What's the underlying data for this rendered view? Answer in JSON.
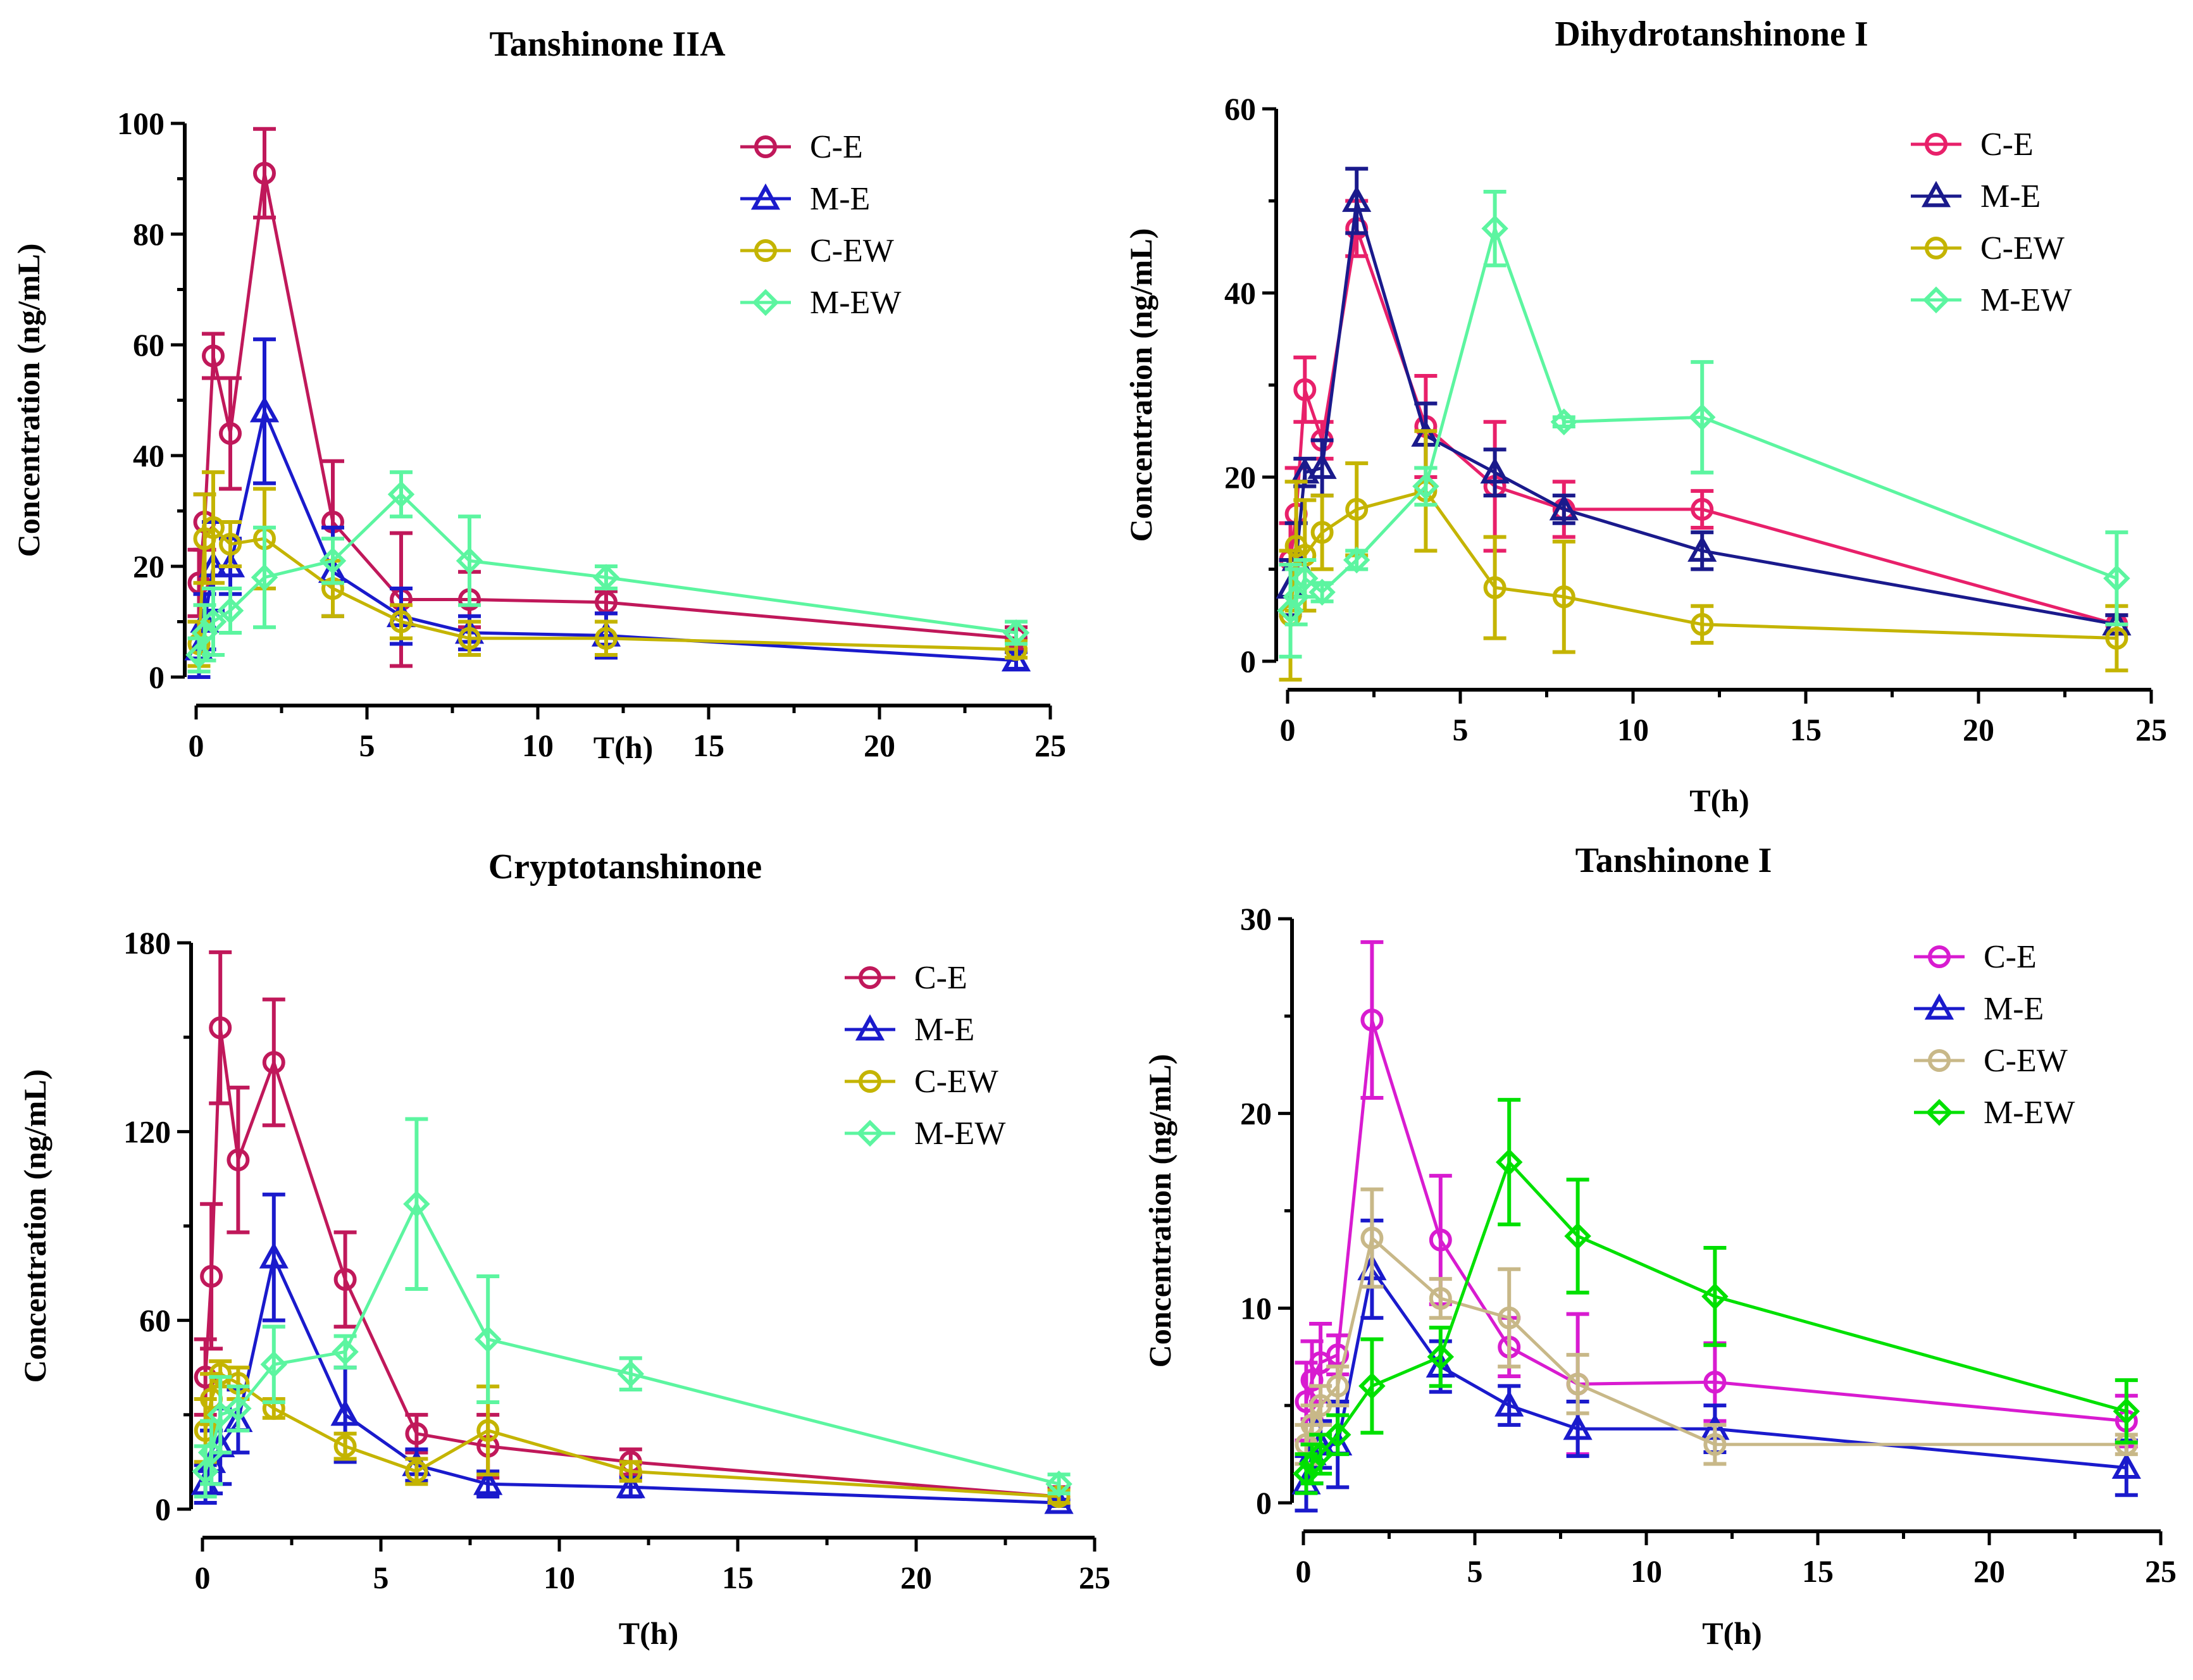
{
  "chart_data": [
    {
      "type": "line",
      "title": "Tanshinone IIA",
      "xlabel": "T(h)",
      "ylabel": "Concentration (ng/mL)",
      "xlim": [
        0,
        25
      ],
      "ylim": [
        0,
        100
      ],
      "xticks": [
        0,
        5,
        10,
        15,
        20,
        25
      ],
      "yticks": [
        0,
        20,
        40,
        60,
        80,
        100
      ],
      "xtick_labels": [
        "0",
        "5",
        "10",
        "15",
        "20",
        "25"
      ],
      "ytick_labels": [
        "0",
        "20",
        "40",
        "60",
        "80",
        "100"
      ],
      "legend_position": "top-right",
      "x": [
        0.083,
        0.25,
        0.5,
        1,
        2,
        4,
        6,
        8,
        12,
        24
      ],
      "series": [
        {
          "name": "C-E",
          "color": "#C0185A",
          "marker": "circle",
          "values": [
            17,
            28,
            58,
            44,
            91,
            28,
            14,
            14,
            13.5,
            7
          ],
          "errors": [
            6,
            5,
            4,
            10,
            8,
            11,
            12,
            5,
            2,
            2
          ]
        },
        {
          "name": "M-E",
          "color": "#1A1ACC",
          "marker": "triangle",
          "values": [
            5,
            10,
            20,
            20,
            48,
            19,
            11,
            8,
            7.5,
            3
          ],
          "errors": [
            5,
            5,
            8,
            5,
            13,
            8,
            5,
            3,
            4,
            1.5
          ]
        },
        {
          "name": "C-EW",
          "color": "#C4B400",
          "marker": "circle",
          "values": [
            6,
            25,
            27,
            24,
            25,
            16,
            10,
            7,
            7,
            5
          ],
          "errors": [
            4,
            8,
            10,
            4,
            9,
            5,
            3,
            3,
            3,
            1.5
          ]
        },
        {
          "name": "M-EW",
          "color": "#5CF5A0",
          "marker": "diamond",
          "values": [
            4,
            8,
            10,
            12,
            18,
            21,
            33,
            21,
            18,
            8
          ],
          "errors": [
            3,
            5,
            6,
            4,
            9,
            4,
            4,
            8,
            2,
            2
          ]
        }
      ]
    },
    {
      "type": "line",
      "title": "Dihydrotanshinone I",
      "xlabel": "T(h)",
      "ylabel": "Concentration (ng/mL)",
      "xlim": [
        0,
        25
      ],
      "ylim": [
        0,
        60
      ],
      "xticks": [
        0,
        5,
        10,
        15,
        20,
        25
      ],
      "yticks": [
        0,
        20,
        40,
        60
      ],
      "xtick_labels": [
        "0",
        "5",
        "10",
        "15",
        "20",
        "25"
      ],
      "ytick_labels": [
        "0",
        "20",
        "40",
        "60"
      ],
      "legend_position": "top-right",
      "x": [
        0.083,
        0.25,
        0.5,
        1,
        2,
        4,
        6,
        8,
        12,
        24
      ],
      "series": [
        {
          "name": "C-E",
          "color": "#E8206A",
          "marker": "circle",
          "values": [
            11,
            16,
            29.5,
            24,
            47,
            25.5,
            19,
            16.5,
            16.5,
            4
          ],
          "errors": [
            4,
            5,
            3.5,
            2,
            3,
            5.5,
            7,
            3,
            2,
            1
          ]
        },
        {
          "name": "M-E",
          "color": "#1A1A8C",
          "marker": "triangle",
          "values": [
            8,
            11,
            20.5,
            21,
            50,
            24.5,
            20.5,
            16.5,
            12,
            4
          ],
          "errors": [
            3,
            4,
            1.5,
            3,
            3.5,
            3.5,
            2.5,
            1.5,
            2,
            1
          ]
        },
        {
          "name": "C-EW",
          "color": "#C4B400",
          "marker": "circle",
          "values": [
            5,
            12.5,
            11.5,
            14,
            16.5,
            18.5,
            8,
            7,
            4,
            2.5
          ],
          "errors": [
            7,
            7,
            6,
            4,
            5,
            6.5,
            5.5,
            6,
            2,
            3.5
          ]
        },
        {
          "name": "M-EW",
          "color": "#5CF5A0",
          "marker": "diamond",
          "values": [
            5.5,
            7,
            9,
            7.5,
            11,
            19,
            47,
            26,
            26.5,
            9
          ],
          "errors": [
            5,
            3,
            2,
            1,
            1,
            2,
            4,
            0.5,
            6,
            5
          ]
        }
      ]
    },
    {
      "type": "line",
      "title": "Cryptotanshinone",
      "xlabel": "T(h)",
      "ylabel": "Concentration (ng/mL)",
      "xlim": [
        0,
        25
      ],
      "ylim": [
        0,
        180
      ],
      "xticks": [
        0,
        5,
        10,
        15,
        20,
        25
      ],
      "yticks": [
        0,
        60,
        120,
        180
      ],
      "xtick_labels": [
        "0",
        "5",
        "10",
        "15",
        "20",
        "25"
      ],
      "ytick_labels": [
        "0",
        "60",
        "120",
        "180"
      ],
      "legend_position": "top-right",
      "x": [
        0.083,
        0.25,
        0.5,
        1,
        2,
        4,
        6,
        8,
        12,
        24
      ],
      "series": [
        {
          "name": "C-E",
          "color": "#C0185A",
          "marker": "circle",
          "values": [
            42,
            74,
            153,
            111,
            142,
            73,
            24,
            20,
            15,
            4
          ],
          "errors": [
            12,
            23,
            24,
            23,
            20,
            15,
            6,
            10,
            4,
            3
          ]
        },
        {
          "name": "M-E",
          "color": "#1A1ACC",
          "marker": "triangle",
          "values": [
            8,
            15,
            20,
            28,
            80,
            30,
            14,
            8,
            7,
            2
          ],
          "errors": [
            6,
            10,
            12,
            10,
            20,
            15,
            5,
            4,
            3,
            1
          ]
        },
        {
          "name": "C-EW",
          "color": "#C4B400",
          "marker": "circle",
          "values": [
            25,
            35,
            43,
            40,
            32,
            20,
            12,
            25,
            12,
            4
          ],
          "errors": [
            10,
            8,
            4,
            5,
            3,
            4,
            4,
            14,
            3,
            2
          ]
        },
        {
          "name": "M-EW",
          "color": "#5CF5A0",
          "marker": "diamond",
          "values": [
            12,
            18,
            30,
            32,
            46,
            50,
            97,
            54,
            43,
            8
          ],
          "errors": [
            8,
            10,
            12,
            7,
            12,
            5,
            27,
            20,
            5,
            3
          ]
        }
      ]
    },
    {
      "type": "line",
      "title": "Tanshinone I",
      "xlabel": "T(h)",
      "ylabel": "Concentration (ng/mL)",
      "xlim": [
        0,
        25
      ],
      "ylim": [
        0,
        30
      ],
      "xticks": [
        0,
        5,
        10,
        15,
        20,
        25
      ],
      "yticks": [
        0,
        10,
        20,
        30
      ],
      "xtick_labels": [
        "0",
        "5",
        "10",
        "15",
        "20",
        "25"
      ],
      "ytick_labels": [
        "0",
        "10",
        "20",
        "30"
      ],
      "legend_position": "top-right",
      "x": [
        0.083,
        0.25,
        0.5,
        1,
        2,
        4,
        6,
        8,
        12,
        24
      ],
      "series": [
        {
          "name": "C-E",
          "color": "#D81BD0",
          "marker": "circle",
          "values": [
            5.2,
            6.3,
            7.2,
            7.6,
            24.8,
            13.5,
            8,
            6.1,
            6.2,
            4.2
          ],
          "errors": [
            2,
            2,
            2,
            1,
            4,
            3.3,
            1.5,
            3.6,
            2,
            1.3
          ]
        },
        {
          "name": "M-E",
          "color": "#1A1ACC",
          "marker": "triangle",
          "values": [
            1,
            2.5,
            3,
            3,
            12,
            7,
            5,
            3.8,
            3.8,
            1.8
          ],
          "errors": [
            1.4,
            1.5,
            1.2,
            2.2,
            2.5,
            1.3,
            1,
            1.4,
            1.2,
            1.4
          ]
        },
        {
          "name": "C-EW",
          "color": "#C8B888",
          "marker": "circle",
          "values": [
            3,
            4,
            5,
            6,
            13.6,
            10.5,
            9.5,
            6.1,
            3,
            3
          ],
          "errors": [
            1,
            1,
            1,
            1,
            2.5,
            1,
            2.5,
            1.5,
            1,
            0.5
          ]
        },
        {
          "name": "M-EW",
          "color": "#00E000",
          "marker": "diamond",
          "values": [
            1.5,
            2,
            2.5,
            3.5,
            6,
            7.5,
            17.5,
            13.7,
            10.6,
            4.7
          ],
          "errors": [
            1,
            1,
            1,
            1,
            2.4,
            1.5,
            3.2,
            2.9,
            2.5,
            1.6
          ]
        }
      ]
    }
  ]
}
